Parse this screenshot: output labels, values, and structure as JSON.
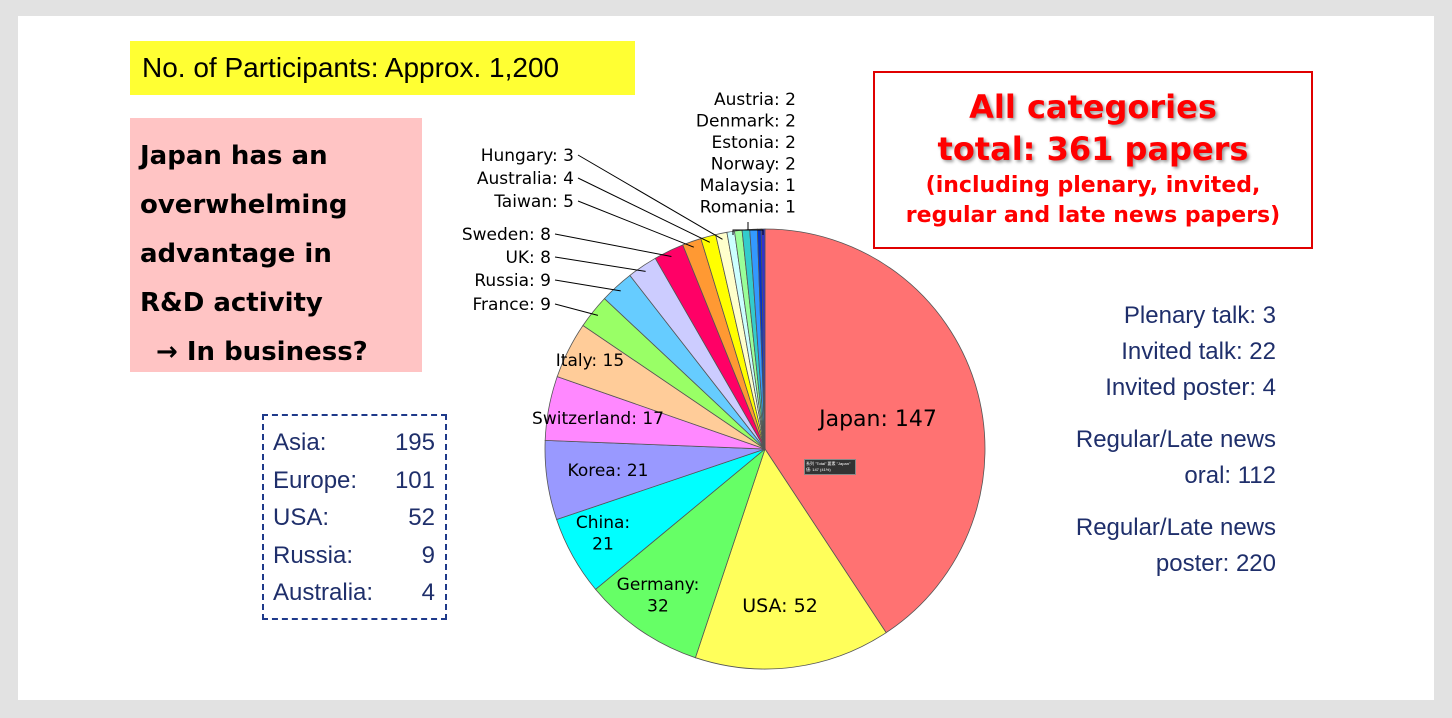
{
  "participants_label": "No. of Participants: Approx. 1,200",
  "japan_note": {
    "lines": [
      "Japan has an",
      "overwhelming",
      "advantage in",
      "R&D activity",
      "→  In business?"
    ]
  },
  "regions": [
    {
      "name": "Asia:",
      "value": "195"
    },
    {
      "name": "Europe:",
      "value": "101"
    },
    {
      "name": "USA:",
      "value": "52"
    },
    {
      "name": "Russia:",
      "value": "9"
    },
    {
      "name": "Australia:",
      "value": "4"
    }
  ],
  "totals": {
    "line1": "All categories",
    "line2": "total:  361 papers",
    "line3": "(including plenary, invited,",
    "line4": "regular and late news papers)"
  },
  "talks": {
    "plenary": "Plenary talk: 3",
    "invited_talk": "Invited talk: 22",
    "invited_poster": "Invited poster: 4",
    "oral_1": "Regular/Late news",
    "oral_2": "oral: 112",
    "poster_1": "Regular/Late news",
    "poster_2": "poster: 220"
  },
  "tooltip": {
    "line1": "系列 \"Total\" 要素 \"Japan\"",
    "line2": "値: 147 (41%)"
  },
  "chart_data": {
    "type": "pie",
    "title": "",
    "slices": [
      {
        "name": "Japan",
        "value": 147,
        "label": "Japan: 147",
        "color": "#ff7272"
      },
      {
        "name": "USA",
        "value": 52,
        "label": "USA: 52",
        "color": "#ffff5b"
      },
      {
        "name": "Germany",
        "value": 32,
        "label": "Germany: 32",
        "color": "#66ff66"
      },
      {
        "name": "China",
        "value": 21,
        "label": "China: 21",
        "color": "#00ffff"
      },
      {
        "name": "Korea",
        "value": 21,
        "label": "Korea: 21",
        "color": "#9999ff"
      },
      {
        "name": "Switzerland",
        "value": 17,
        "label": "Switzerland: 17",
        "color": "#ff88ff"
      },
      {
        "name": "Italy",
        "value": 15,
        "label": "Italy: 15",
        "color": "#ffcc99"
      },
      {
        "name": "France",
        "value": 9,
        "label": "France: 9",
        "color": "#99ff66"
      },
      {
        "name": "Russia",
        "value": 9,
        "label": "Russia: 9",
        "color": "#66ccff"
      },
      {
        "name": "UK",
        "value": 8,
        "label": "UK: 8",
        "color": "#ccccff"
      },
      {
        "name": "Sweden",
        "value": 8,
        "label": "Sweden: 8",
        "color": "#ff0066"
      },
      {
        "name": "Taiwan",
        "value": 5,
        "label": "Taiwan: 5",
        "color": "#ff9933"
      },
      {
        "name": "Australia",
        "value": 4,
        "label": "Australia: 4",
        "color": "#ffff00"
      },
      {
        "name": "Hungary",
        "value": 3,
        "label": "Hungary: 3",
        "color": "#ffffcc"
      },
      {
        "name": "Austria",
        "value": 2,
        "label": "Austria: 2",
        "color": "#ccffff"
      },
      {
        "name": "Denmark",
        "value": 2,
        "label": "Denmark: 2",
        "color": "#99ff99"
      },
      {
        "name": "Estonia",
        "value": 2,
        "label": "Estonia: 2",
        "color": "#33cccc"
      },
      {
        "name": "Norway",
        "value": 2,
        "label": "Norway: 2",
        "color": "#3399ff"
      },
      {
        "name": "Malaysia",
        "value": 1,
        "label": "Malaysia: 1",
        "color": "#0033cc"
      },
      {
        "name": "Romania",
        "value": 1,
        "label": "Romania: 1",
        "color": "#3333cc"
      }
    ]
  }
}
